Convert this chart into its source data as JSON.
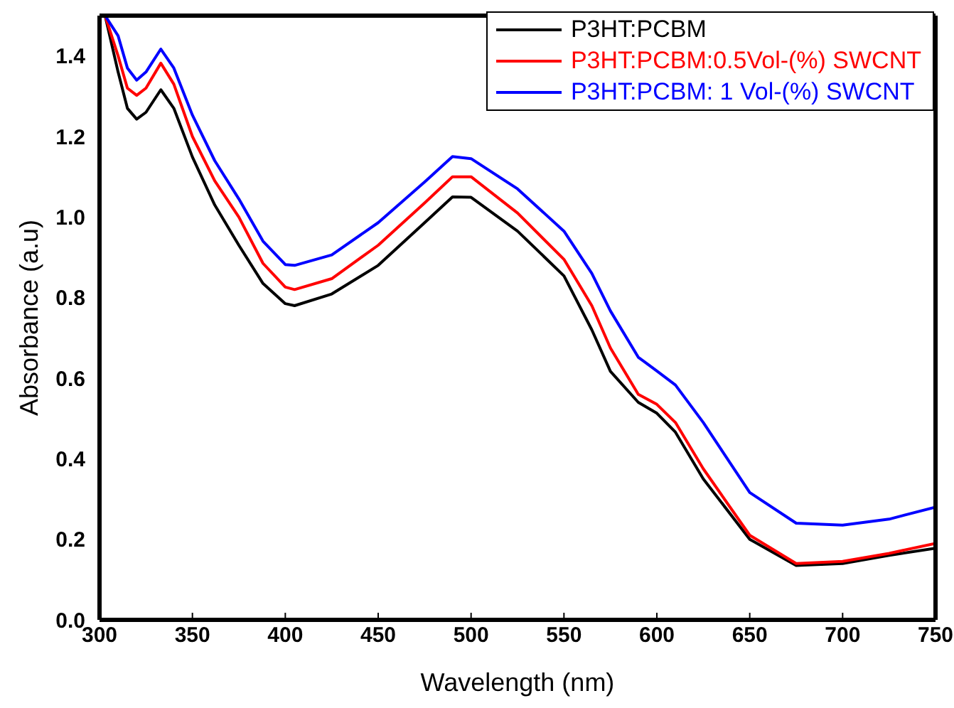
{
  "chart_data": {
    "type": "line",
    "xlabel": "Wavelength (nm)",
    "ylabel": "Absorbance (a.u)",
    "x": [
      303,
      310,
      315,
      320,
      325,
      333,
      340,
      350,
      362,
      375,
      388,
      400,
      405,
      425,
      450,
      475,
      490,
      500,
      525,
      550,
      565,
      575,
      590,
      600,
      610,
      625,
      650,
      675,
      700,
      725,
      750
    ],
    "series": [
      {
        "name": "P3HT:PCBM",
        "color": "#000000",
        "values": [
          1.5,
          1.36,
          1.27,
          1.243,
          1.26,
          1.316,
          1.27,
          1.149,
          1.03,
          0.93,
          0.835,
          0.785,
          0.78,
          0.809,
          0.88,
          0.986,
          1.05,
          1.049,
          0.965,
          0.854,
          0.72,
          0.617,
          0.54,
          0.513,
          0.466,
          0.35,
          0.2,
          0.135,
          0.14,
          0.16,
          0.178
        ]
      },
      {
        "name": "P3HT:PCBM:0.5Vol-(%) SWCNT",
        "color": "#ff0000",
        "values": [
          1.5,
          1.4,
          1.32,
          1.302,
          1.32,
          1.382,
          1.33,
          1.2,
          1.09,
          1.0,
          0.885,
          0.826,
          0.82,
          0.847,
          0.93,
          1.035,
          1.1,
          1.1,
          1.01,
          0.895,
          0.78,
          0.675,
          0.56,
          0.535,
          0.49,
          0.375,
          0.21,
          0.14,
          0.145,
          0.165,
          0.19
        ]
      },
      {
        "name": "P3HT:PCBM: 1 Vol-(%) SWCNT",
        "color": "#0000ff",
        "values": [
          1.5,
          1.45,
          1.37,
          1.34,
          1.36,
          1.417,
          1.37,
          1.253,
          1.14,
          1.045,
          0.94,
          0.882,
          0.88,
          0.906,
          0.986,
          1.087,
          1.15,
          1.145,
          1.07,
          0.965,
          0.86,
          0.767,
          0.652,
          0.618,
          0.583,
          0.49,
          0.316,
          0.24,
          0.235,
          0.25,
          0.28
        ]
      }
    ],
    "xlim": [
      300,
      750
    ],
    "xticks": [
      300,
      350,
      400,
      450,
      500,
      550,
      600,
      650,
      700,
      750
    ],
    "ylim": [
      0,
      1.5
    ],
    "yticks": [
      {
        "value": 0,
        "label": "0.0"
      },
      0.2,
      0.4,
      0.6,
      0.8,
      {
        "value": 1,
        "label": "1.0"
      },
      1.2,
      1.4
    ],
    "grid": false,
    "legend": "top right",
    "marker": "none",
    "line_style": "solid"
  }
}
